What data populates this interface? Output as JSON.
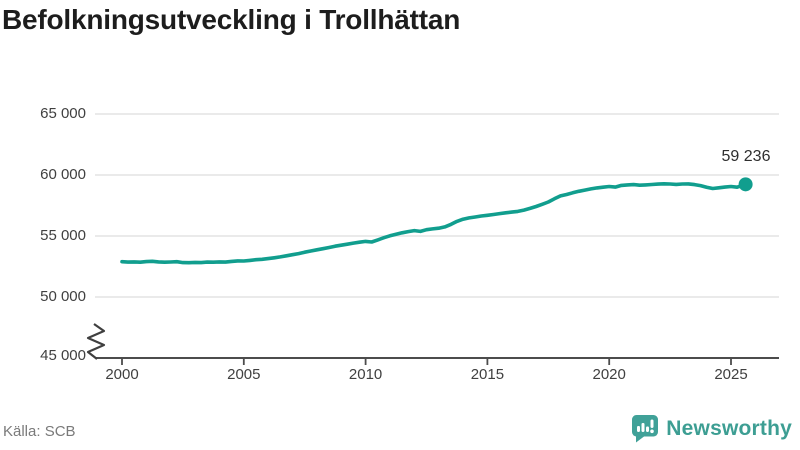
{
  "title": "Befolkningsutveckling i Trollhättan",
  "source": "Källa: SCB",
  "branding": {
    "name": "Newsworthy",
    "icon": "bar-chart-speech-bubble-icon",
    "color": "#3d9e93"
  },
  "chart_data": {
    "type": "line",
    "title": "Befolkningsutveckling i Trollhättan",
    "xlabel": "",
    "ylabel": "",
    "grid": "horizontal",
    "legend": "none",
    "axis_break_low": true,
    "ylim": [
      45000,
      66500
    ],
    "xlim": [
      2000,
      2025.6
    ],
    "x_ticks": [
      2000,
      2005,
      2010,
      2015,
      2020,
      2025
    ],
    "x_tick_labels": [
      "2000",
      "2005",
      "2010",
      "2015",
      "2020",
      "2025"
    ],
    "y_tick_values": [
      65000,
      60000,
      55000,
      50000,
      45000
    ],
    "y_tick_labels": [
      "65 000",
      "60 000",
      "55 000",
      "50 000",
      "45 000"
    ],
    "last_point": {
      "x": 2025.6,
      "y": 59236,
      "label": "59 236"
    },
    "series": [
      {
        "name": "Befolkning",
        "color": "#119e8e",
        "points": [
          [
            2000.0,
            52890
          ],
          [
            2000.25,
            52860
          ],
          [
            2000.5,
            52880
          ],
          [
            2000.75,
            52850
          ],
          [
            2001.0,
            52900
          ],
          [
            2001.25,
            52930
          ],
          [
            2001.5,
            52880
          ],
          [
            2001.75,
            52850
          ],
          [
            2002.0,
            52870
          ],
          [
            2002.25,
            52890
          ],
          [
            2002.5,
            52820
          ],
          [
            2002.75,
            52810
          ],
          [
            2003.0,
            52840
          ],
          [
            2003.25,
            52820
          ],
          [
            2003.5,
            52860
          ],
          [
            2003.75,
            52850
          ],
          [
            2004.0,
            52880
          ],
          [
            2004.25,
            52860
          ],
          [
            2004.5,
            52920
          ],
          [
            2004.75,
            52960
          ],
          [
            2005.0,
            52950
          ],
          [
            2005.25,
            53000
          ],
          [
            2005.5,
            53060
          ],
          [
            2005.75,
            53090
          ],
          [
            2006.0,
            53150
          ],
          [
            2006.25,
            53210
          ],
          [
            2006.5,
            53290
          ],
          [
            2006.75,
            53380
          ],
          [
            2007.0,
            53470
          ],
          [
            2007.25,
            53560
          ],
          [
            2007.5,
            53670
          ],
          [
            2007.75,
            53770
          ],
          [
            2008.0,
            53870
          ],
          [
            2008.25,
            53960
          ],
          [
            2008.5,
            54060
          ],
          [
            2008.75,
            54160
          ],
          [
            2009.0,
            54250
          ],
          [
            2009.25,
            54330
          ],
          [
            2009.5,
            54420
          ],
          [
            2009.75,
            54490
          ],
          [
            2010.0,
            54560
          ],
          [
            2010.25,
            54510
          ],
          [
            2010.5,
            54680
          ],
          [
            2010.75,
            54860
          ],
          [
            2011.0,
            55020
          ],
          [
            2011.25,
            55140
          ],
          [
            2011.5,
            55260
          ],
          [
            2011.75,
            55360
          ],
          [
            2012.0,
            55440
          ],
          [
            2012.25,
            55380
          ],
          [
            2012.5,
            55520
          ],
          [
            2012.75,
            55580
          ],
          [
            2013.0,
            55640
          ],
          [
            2013.25,
            55750
          ],
          [
            2013.5,
            55950
          ],
          [
            2013.75,
            56200
          ],
          [
            2014.0,
            56380
          ],
          [
            2014.25,
            56480
          ],
          [
            2014.5,
            56560
          ],
          [
            2014.75,
            56640
          ],
          [
            2015.0,
            56700
          ],
          [
            2015.25,
            56760
          ],
          [
            2015.5,
            56840
          ],
          [
            2015.75,
            56900
          ],
          [
            2016.0,
            56960
          ],
          [
            2016.25,
            57020
          ],
          [
            2016.5,
            57120
          ],
          [
            2016.75,
            57260
          ],
          [
            2017.0,
            57420
          ],
          [
            2017.25,
            57600
          ],
          [
            2017.5,
            57790
          ],
          [
            2017.75,
            58050
          ],
          [
            2018.0,
            58290
          ],
          [
            2018.25,
            58400
          ],
          [
            2018.5,
            58540
          ],
          [
            2018.75,
            58660
          ],
          [
            2019.0,
            58760
          ],
          [
            2019.25,
            58860
          ],
          [
            2019.5,
            58940
          ],
          [
            2019.75,
            59000
          ],
          [
            2020.0,
            59060
          ],
          [
            2020.25,
            59010
          ],
          [
            2020.5,
            59150
          ],
          [
            2020.75,
            59190
          ],
          [
            2021.0,
            59210
          ],
          [
            2021.25,
            59160
          ],
          [
            2021.5,
            59190
          ],
          [
            2021.75,
            59220
          ],
          [
            2022.0,
            59250
          ],
          [
            2022.25,
            59280
          ],
          [
            2022.5,
            59260
          ],
          [
            2022.75,
            59230
          ],
          [
            2023.0,
            59260
          ],
          [
            2023.25,
            59270
          ],
          [
            2023.5,
            59210
          ],
          [
            2023.75,
            59130
          ],
          [
            2024.0,
            59000
          ],
          [
            2024.25,
            58890
          ],
          [
            2024.5,
            58950
          ],
          [
            2024.75,
            59010
          ],
          [
            2025.0,
            59060
          ],
          [
            2025.25,
            59000
          ],
          [
            2025.6,
            59236
          ]
        ]
      }
    ]
  }
}
